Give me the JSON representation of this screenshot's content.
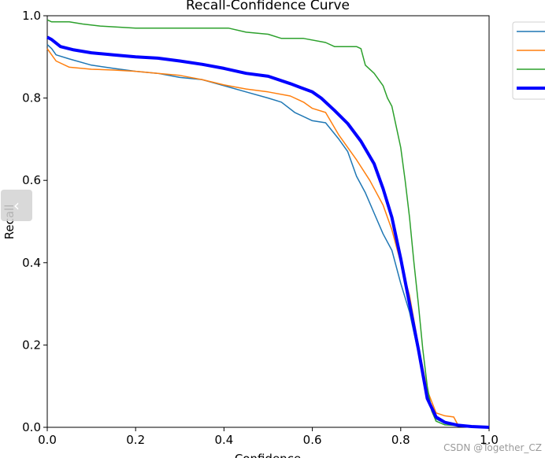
{
  "chart_data": {
    "type": "line",
    "title": "Recall-Confidence Curve",
    "xlabel": "Confidence",
    "ylabel": "Recall",
    "xlim": [
      0,
      1
    ],
    "ylim": [
      0,
      1
    ],
    "xticks": [
      "0.0",
      "0.2",
      "0.4",
      "0.6",
      "0.8",
      "1.0"
    ],
    "yticks": [
      "0.0",
      "0.2",
      "0.4",
      "0.6",
      "0.8",
      "1.0"
    ],
    "grid": false,
    "legend": "outside right, top (entries cropped)",
    "series": [
      {
        "color": "#1f77b4",
        "points": [
          [
            0,
            0.93
          ],
          [
            0.01,
            0.92
          ],
          [
            0.02,
            0.905
          ],
          [
            0.05,
            0.895
          ],
          [
            0.1,
            0.88
          ],
          [
            0.15,
            0.872
          ],
          [
            0.2,
            0.865
          ],
          [
            0.25,
            0.86
          ],
          [
            0.3,
            0.85
          ],
          [
            0.35,
            0.845
          ],
          [
            0.4,
            0.83
          ],
          [
            0.45,
            0.815
          ],
          [
            0.5,
            0.8
          ],
          [
            0.53,
            0.79
          ],
          [
            0.56,
            0.765
          ],
          [
            0.6,
            0.745
          ],
          [
            0.63,
            0.74
          ],
          [
            0.66,
            0.7
          ],
          [
            0.68,
            0.67
          ],
          [
            0.7,
            0.61
          ],
          [
            0.72,
            0.57
          ],
          [
            0.74,
            0.52
          ],
          [
            0.76,
            0.47
          ],
          [
            0.78,
            0.43
          ],
          [
            0.8,
            0.35
          ],
          [
            0.82,
            0.28
          ],
          [
            0.84,
            0.18
          ],
          [
            0.86,
            0.08
          ],
          [
            0.88,
            0.02
          ],
          [
            0.9,
            0.01
          ],
          [
            0.93,
            0.005
          ],
          [
            1.0,
            0
          ]
        ]
      },
      {
        "color": "#ff7f0e",
        "points": [
          [
            0,
            0.92
          ],
          [
            0.01,
            0.905
          ],
          [
            0.02,
            0.89
          ],
          [
            0.05,
            0.875
          ],
          [
            0.1,
            0.87
          ],
          [
            0.15,
            0.868
          ],
          [
            0.2,
            0.865
          ],
          [
            0.25,
            0.86
          ],
          [
            0.3,
            0.855
          ],
          [
            0.35,
            0.845
          ],
          [
            0.4,
            0.832
          ],
          [
            0.45,
            0.822
          ],
          [
            0.5,
            0.815
          ],
          [
            0.55,
            0.805
          ],
          [
            0.58,
            0.79
          ],
          [
            0.6,
            0.775
          ],
          [
            0.63,
            0.765
          ],
          [
            0.66,
            0.71
          ],
          [
            0.7,
            0.65
          ],
          [
            0.73,
            0.6
          ],
          [
            0.76,
            0.54
          ],
          [
            0.78,
            0.48
          ],
          [
            0.8,
            0.4
          ],
          [
            0.82,
            0.32
          ],
          [
            0.84,
            0.2
          ],
          [
            0.86,
            0.09
          ],
          [
            0.88,
            0.035
          ],
          [
            0.9,
            0.028
          ],
          [
            0.92,
            0.025
          ],
          [
            0.93,
            0.005
          ],
          [
            1.0,
            0
          ]
        ]
      },
      {
        "color": "#2ca02c",
        "points": [
          [
            0,
            0.99
          ],
          [
            0.01,
            0.985
          ],
          [
            0.05,
            0.985
          ],
          [
            0.08,
            0.98
          ],
          [
            0.12,
            0.975
          ],
          [
            0.2,
            0.97
          ],
          [
            0.3,
            0.97
          ],
          [
            0.41,
            0.97
          ],
          [
            0.45,
            0.96
          ],
          [
            0.5,
            0.955
          ],
          [
            0.53,
            0.945
          ],
          [
            0.58,
            0.945
          ],
          [
            0.63,
            0.935
          ],
          [
            0.65,
            0.925
          ],
          [
            0.7,
            0.925
          ],
          [
            0.71,
            0.92
          ],
          [
            0.72,
            0.88
          ],
          [
            0.74,
            0.86
          ],
          [
            0.76,
            0.83
          ],
          [
            0.77,
            0.8
          ],
          [
            0.78,
            0.78
          ],
          [
            0.79,
            0.73
          ],
          [
            0.8,
            0.68
          ],
          [
            0.81,
            0.6
          ],
          [
            0.82,
            0.51
          ],
          [
            0.83,
            0.4
          ],
          [
            0.84,
            0.3
          ],
          [
            0.85,
            0.19
          ],
          [
            0.86,
            0.1
          ],
          [
            0.87,
            0.04
          ],
          [
            0.88,
            0.015
          ],
          [
            0.9,
            0.006
          ],
          [
            1.0,
            0
          ]
        ]
      },
      {
        "color": "#0000ff",
        "points": [
          [
            0,
            0.948
          ],
          [
            0.01,
            0.942
          ],
          [
            0.03,
            0.925
          ],
          [
            0.06,
            0.917
          ],
          [
            0.1,
            0.91
          ],
          [
            0.15,
            0.905
          ],
          [
            0.2,
            0.9
          ],
          [
            0.25,
            0.897
          ],
          [
            0.3,
            0.89
          ],
          [
            0.35,
            0.882
          ],
          [
            0.4,
            0.872
          ],
          [
            0.45,
            0.86
          ],
          [
            0.5,
            0.853
          ],
          [
            0.55,
            0.835
          ],
          [
            0.6,
            0.815
          ],
          [
            0.62,
            0.8
          ],
          [
            0.65,
            0.77
          ],
          [
            0.68,
            0.738
          ],
          [
            0.71,
            0.695
          ],
          [
            0.74,
            0.64
          ],
          [
            0.76,
            0.58
          ],
          [
            0.78,
            0.51
          ],
          [
            0.8,
            0.41
          ],
          [
            0.82,
            0.3
          ],
          [
            0.84,
            0.19
          ],
          [
            0.86,
            0.07
          ],
          [
            0.88,
            0.025
          ],
          [
            0.9,
            0.012
          ],
          [
            0.93,
            0.005
          ],
          [
            0.96,
            0.002
          ],
          [
            1.0,
            0
          ]
        ]
      }
    ]
  },
  "ui": {
    "collapse_icon": "‹",
    "watermark": "CSDN @Together_CZ"
  }
}
